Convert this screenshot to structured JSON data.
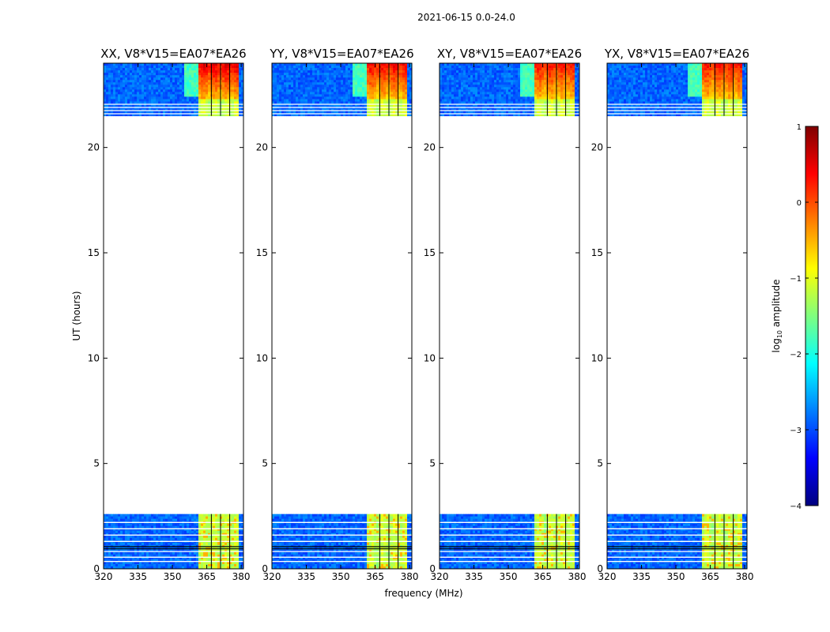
{
  "figure_title": "2021-06-15 0.0-24.0",
  "colorbar": {
    "label": "log10 amplitude",
    "label_main": "log",
    "label_sub": "10",
    "label_rest": " amplitude",
    "range": [
      -4,
      1
    ],
    "ticks": [
      "1",
      "0",
      "−1",
      "−2",
      "−3",
      "−4"
    ],
    "tick_values": [
      1,
      0,
      -1,
      -2,
      -3,
      -4
    ],
    "colors": [
      "#00007f",
      "#0000ff",
      "#007fff",
      "#00ffff",
      "#7fff7f",
      "#ffff00",
      "#ff7f00",
      "#ff0000",
      "#7f0000"
    ]
  },
  "chart_data": [
    {
      "type": "heatmap",
      "title": "XX, V8*V15=EA07*EA26",
      "xlabel": "",
      "ylabel": "UT (hours)",
      "xlim": [
        320,
        381
      ],
      "ylim": [
        0,
        24
      ],
      "xticks": [
        320,
        335,
        350,
        365,
        380
      ],
      "yticks": [
        0,
        5,
        10,
        15,
        20
      ],
      "data_bands_ut": [
        [
          0,
          2.6
        ],
        [
          21.5,
          24
        ]
      ],
      "rfi_band_mhz": [
        361,
        379
      ],
      "rfi_peak_log10_amplitude": 0.6
    },
    {
      "type": "heatmap",
      "title": "YY, V8*V15=EA07*EA26",
      "xlabel": "frequency (MHz)",
      "ylabel": "",
      "xlim": [
        320,
        381
      ],
      "ylim": [
        0,
        24
      ],
      "xticks": [
        320,
        335,
        350,
        365,
        380
      ],
      "yticks": [
        0,
        5,
        10,
        15,
        20
      ],
      "data_bands_ut": [
        [
          0,
          2.6
        ],
        [
          21.5,
          24
        ]
      ],
      "rfi_band_mhz": [
        361,
        379
      ],
      "rfi_peak_log10_amplitude": 0.5
    },
    {
      "type": "heatmap",
      "title": "XY, V8*V15=EA07*EA26",
      "xlabel": "",
      "ylabel": "",
      "xlim": [
        320,
        381
      ],
      "ylim": [
        0,
        24
      ],
      "xticks": [
        320,
        335,
        350,
        365,
        380
      ],
      "yticks": [
        0,
        5,
        10,
        15,
        20
      ],
      "data_bands_ut": [
        [
          0,
          2.6
        ],
        [
          21.5,
          24
        ]
      ],
      "rfi_band_mhz": [
        361,
        379
      ],
      "rfi_peak_log10_amplitude": 0.4
    },
    {
      "type": "heatmap",
      "title": "YX, V8*V15=EA07*EA26",
      "xlabel": "",
      "ylabel": "",
      "xlim": [
        320,
        381
      ],
      "ylim": [
        0,
        24
      ],
      "xticks": [
        320,
        335,
        350,
        365,
        380
      ],
      "yticks": [
        0,
        5,
        10,
        15,
        20
      ],
      "data_bands_ut": [
        [
          0,
          2.6
        ],
        [
          21.5,
          24
        ]
      ],
      "rfi_band_mhz": [
        361,
        379
      ],
      "rfi_peak_log10_amplitude": 0.4
    }
  ]
}
